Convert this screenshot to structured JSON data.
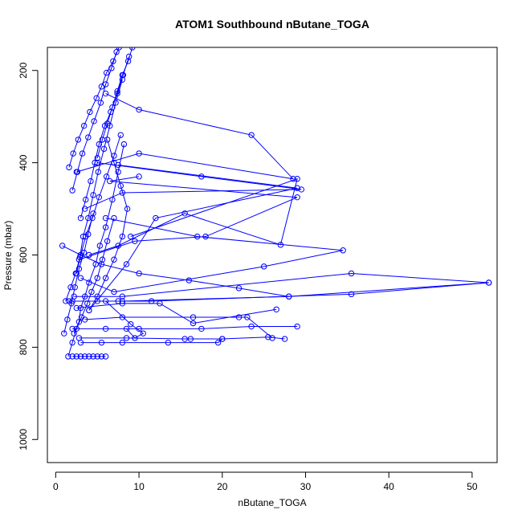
{
  "chart_data": {
    "type": "scatter",
    "title": "ATOM1 Southbound nButane_TOGA",
    "xlabel": "nButane_TOGA",
    "ylabel": "Pressure (mbar)",
    "xlim": [
      -1,
      53
    ],
    "ylim": [
      150,
      1050
    ],
    "y_reversed": true,
    "x_ticks": [
      0,
      10,
      20,
      30,
      40,
      50
    ],
    "y_ticks": [
      200,
      400,
      600,
      800,
      1000
    ],
    "grid": false,
    "series_color": "#0000ff",
    "marker": "open-circle",
    "series": [
      {
        "x": [
          1.5,
          2.0,
          2.5,
          3.1,
          3.8,
          4.3,
          5.0,
          5.6,
          6.2,
          7.0
        ],
        "y": [
          820,
          790,
          760,
          735,
          705,
          680,
          650,
          610,
          570,
          520
        ]
      },
      {
        "x": [
          2.2,
          2.8,
          3.0,
          3.5,
          4.0,
          4.8,
          5.3,
          6.0,
          6.8,
          7.5,
          8.2
        ],
        "y": [
          770,
          745,
          715,
          690,
          660,
          620,
          580,
          540,
          480,
          420,
          360
        ]
      },
      {
        "x": [
          1.2,
          1.8,
          2.4,
          2.9,
          3.3,
          3.9,
          4.5,
          5.1,
          5.8,
          6.5,
          7.2,
          8.0
        ],
        "y": [
          700,
          670,
          640,
          605,
          560,
          520,
          470,
          420,
          370,
          320,
          270,
          220
        ]
      },
      {
        "x": [
          3.0,
          3.6,
          4.2,
          4.7,
          5.2,
          5.9,
          6.6,
          7.4,
          8.1,
          8.8
        ],
        "y": [
          520,
          480,
          440,
          400,
          360,
          320,
          290,
          250,
          210,
          170
        ]
      },
      {
        "x": [
          2.0,
          2.6,
          3.2,
          3.9,
          4.6,
          5.4,
          6.0,
          6.7,
          7.3
        ],
        "y": [
          460,
          420,
          380,
          345,
          310,
          270,
          230,
          195,
          160
        ]
      },
      {
        "x": [
          1.6,
          2.1,
          2.7,
          3.4,
          4.1,
          4.9,
          5.5,
          6.1,
          6.9,
          7.6
        ],
        "y": [
          410,
          380,
          350,
          320,
          290,
          260,
          235,
          205,
          180,
          150
        ]
      },
      {
        "x": [
          4.0,
          5.0,
          6.0,
          7.0,
          8.0,
          8.6,
          7.8,
          7.0,
          6.2
        ],
        "y": [
          720,
          690,
          650,
          610,
          560,
          500,
          450,
          400,
          350
        ]
      },
      {
        "x": [
          2.5,
          3.0,
          3.6,
          4.4,
          5.2,
          6.1,
          7.0,
          7.8
        ],
        "y": [
          640,
          600,
          560,
          520,
          475,
          430,
          385,
          340
        ]
      },
      {
        "x": [
          1.0,
          1.4,
          1.9,
          2.3,
          2.8,
          3.4,
          3.9,
          4.5
        ],
        "y": [
          770,
          740,
          705,
          670,
          630,
          595,
          555,
          510
        ]
      },
      {
        "x": [
          5.0,
          5.6,
          6.2,
          6.8,
          7.4,
          8.0,
          8.7,
          9.2
        ],
        "y": [
          390,
          350,
          315,
          280,
          245,
          210,
          180,
          150
        ]
      },
      {
        "x": [
          2.0,
          2.5,
          3.0,
          3.5,
          4.0,
          4.5,
          5.0,
          5.5,
          6.0
        ],
        "y": [
          820,
          820,
          820,
          820,
          820,
          820,
          820,
          820,
          820
        ]
      },
      {
        "x": [
          3.0,
          5.5,
          8.0,
          13.5,
          19.5,
          20.0
        ],
        "y": [
          790,
          790,
          790,
          790,
          790,
          782
        ]
      },
      {
        "x": [
          2.8,
          8.5,
          15.5,
          16.2,
          20.0,
          25.5,
          27.5
        ],
        "y": [
          780,
          780,
          782,
          782,
          782,
          778,
          782
        ]
      },
      {
        "x": [
          2.0,
          6.0,
          10.0,
          17.5,
          23.5,
          29.0
        ],
        "y": [
          760,
          760,
          760,
          760,
          755,
          755
        ]
      },
      {
        "x": [
          3.5,
          8.0,
          16.5,
          22.0,
          23.0,
          26.0
        ],
        "y": [
          740,
          735,
          735,
          735,
          735,
          780
        ]
      },
      {
        "x": [
          2.5,
          8.0,
          12.5,
          16.5,
          26.5
        ],
        "y": [
          715,
          705,
          705,
          748,
          718
        ]
      },
      {
        "x": [
          1.6,
          5.0,
          7.5,
          11.5,
          35.5,
          52.0
        ],
        "y": [
          700,
          700,
          700,
          700,
          685,
          660
        ]
      },
      {
        "x": [
          2.2,
          8.0,
          35.5,
          52.0,
          28.0,
          8.0
        ],
        "y": [
          690,
          690,
          640,
          660,
          690,
          700
        ]
      },
      {
        "x": [
          3.0,
          7.0,
          25.0,
          34.5,
          17.0,
          6.0
        ],
        "y": [
          650,
          680,
          625,
          590,
          560,
          520
        ]
      },
      {
        "x": [
          4.0,
          7.5,
          15.5,
          27.0,
          29.0,
          9.0
        ],
        "y": [
          600,
          580,
          510,
          578,
          435,
          560
        ]
      },
      {
        "x": [
          2.8,
          9.5,
          18.0,
          29.0,
          6.5,
          10.0
        ],
        "y": [
          610,
          570,
          560,
          475,
          440,
          430
        ]
      },
      {
        "x": [
          3.5,
          8.0,
          29.5,
          17.5,
          5.0
        ],
        "y": [
          500,
          465,
          458,
          430,
          400
        ]
      },
      {
        "x": [
          2.5,
          10.0,
          28.5,
          23.5,
          10.0,
          6.0
        ],
        "y": [
          420,
          380,
          435,
          340,
          285,
          250
        ]
      },
      {
        "x": [
          4.0,
          8.5,
          12.0,
          29.0,
          7.5
        ],
        "y": [
          720,
          620,
          520,
          455,
          405
        ]
      },
      {
        "x": [
          0.8,
          3.0,
          5.5,
          10.0,
          16.0,
          22.0,
          28.0
        ],
        "y": [
          580,
          600,
          620,
          640,
          655,
          672,
          690
        ]
      },
      {
        "x": [
          2.0,
          6.0,
          9.0,
          10.5,
          9.5,
          8.5
        ],
        "y": [
          700,
          700,
          750,
          770,
          780,
          760
        ]
      }
    ]
  }
}
